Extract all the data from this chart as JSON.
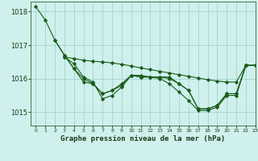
{
  "background_color": "#cff0ec",
  "grid_color": "#aad8d3",
  "line_color": "#1a5c1a",
  "title": "Graphe pression niveau de la mer (hPa)",
  "xlim": [
    -0.5,
    23
  ],
  "ylim": [
    1014.6,
    1018.3
  ],
  "yticks": [
    1015,
    1016,
    1017,
    1018
  ],
  "xticks": [
    0,
    1,
    2,
    3,
    4,
    5,
    6,
    7,
    8,
    9,
    10,
    11,
    12,
    13,
    14,
    15,
    16,
    17,
    18,
    19,
    20,
    21,
    22,
    23
  ],
  "series": [
    {
      "x": [
        0,
        1,
        2,
        3,
        4,
        5,
        6,
        7,
        8,
        9,
        10,
        11,
        12,
        13,
        14,
        15,
        16,
        17,
        18,
        19,
        20,
        21,
        22
      ],
      "y": [
        1018.15,
        1017.75,
        1017.15,
        1016.7,
        1016.3,
        1015.9,
        1015.85,
        1015.55,
        1015.65,
        1015.8,
        1016.1,
        1016.1,
        1016.05,
        1016.05,
        1016.05,
        1015.85,
        1015.65,
        1015.1,
        1015.1,
        1015.2,
        1015.55,
        1015.55,
        1016.4
      ]
    },
    {
      "x": [
        2,
        3,
        4,
        5,
        6,
        7,
        8,
        9,
        10,
        11,
        12,
        13,
        14,
        15,
        16,
        17,
        18,
        19,
        20,
        21,
        22,
        23
      ],
      "y": [
        1017.15,
        1016.7,
        1016.3,
        1016.0,
        1015.85,
        1015.55,
        1015.65,
        1015.85,
        1016.1,
        1016.05,
        1016.05,
        1016.05,
        1016.0,
        1015.85,
        1015.65,
        1015.1,
        1015.1,
        1015.2,
        1015.55,
        1015.55,
        1016.4,
        1016.4
      ]
    },
    {
      "x": [
        3,
        4,
        5,
        6,
        7,
        8,
        9,
        10,
        11,
        12,
        13,
        14,
        15,
        16,
        17,
        18,
        19,
        20,
        21,
        22,
        23
      ],
      "y": [
        1016.65,
        1016.6,
        1016.55,
        1016.52,
        1016.5,
        1016.47,
        1016.43,
        1016.38,
        1016.32,
        1016.27,
        1016.22,
        1016.17,
        1016.12,
        1016.07,
        1016.02,
        1015.97,
        1015.93,
        1015.9,
        1015.9,
        1016.4,
        1016.4
      ]
    },
    {
      "x": [
        3,
        4,
        5,
        6,
        7,
        8,
        9,
        10,
        11,
        12,
        13,
        14,
        15,
        16,
        17,
        18,
        19,
        20,
        21,
        22,
        23
      ],
      "y": [
        1016.65,
        1016.45,
        1016.05,
        1015.9,
        1015.4,
        1015.5,
        1015.75,
        1016.1,
        1016.05,
        1016.05,
        1016.0,
        1015.85,
        1015.6,
        1015.35,
        1015.05,
        1015.05,
        1015.15,
        1015.5,
        1015.5,
        1016.4,
        1016.4
      ]
    }
  ]
}
